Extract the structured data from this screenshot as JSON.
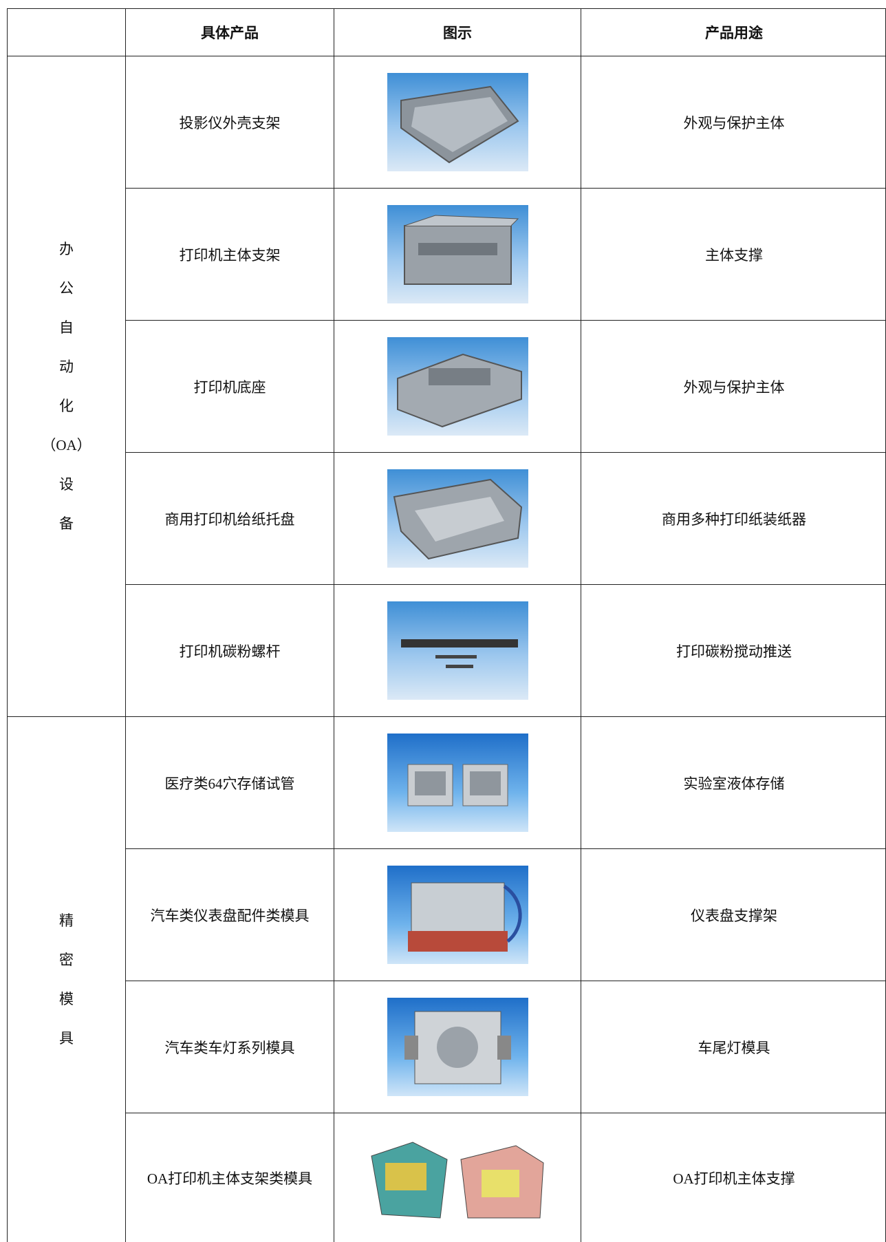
{
  "table": {
    "header": [
      "具体产品",
      "图示",
      "产品用途"
    ],
    "groups": [
      {
        "label": [
          "办",
          "公",
          "自",
          "动",
          "化",
          "（OA）",
          "设",
          "备"
        ],
        "rows": [
          {
            "product": "投影仪外壳支架",
            "use": "外观与保护主体"
          },
          {
            "product": "打印机主体支架",
            "use": "主体支撑"
          },
          {
            "product": "打印机底座",
            "use": "外观与保护主体"
          },
          {
            "product": "商用打印机给纸托盘",
            "use": "商用多种打印纸装纸器"
          },
          {
            "product": "打印机碳粉螺杆",
            "use": "打印碳粉搅动推送"
          }
        ]
      },
      {
        "label": [
          "精",
          "密",
          "模",
          "具"
        ],
        "rows": [
          {
            "product": "医疗类64穴存储试管",
            "use": "实验室液体存储"
          },
          {
            "product": "汽车类仪表盘配件类模具",
            "use": "仪表盘支撑架"
          },
          {
            "product": "汽车类车灯系列模具",
            "use": "车尾灯模具"
          },
          {
            "product": "OA打印机主体支架类模具",
            "use": "OA打印机主体支撑"
          }
        ]
      }
    ]
  }
}
